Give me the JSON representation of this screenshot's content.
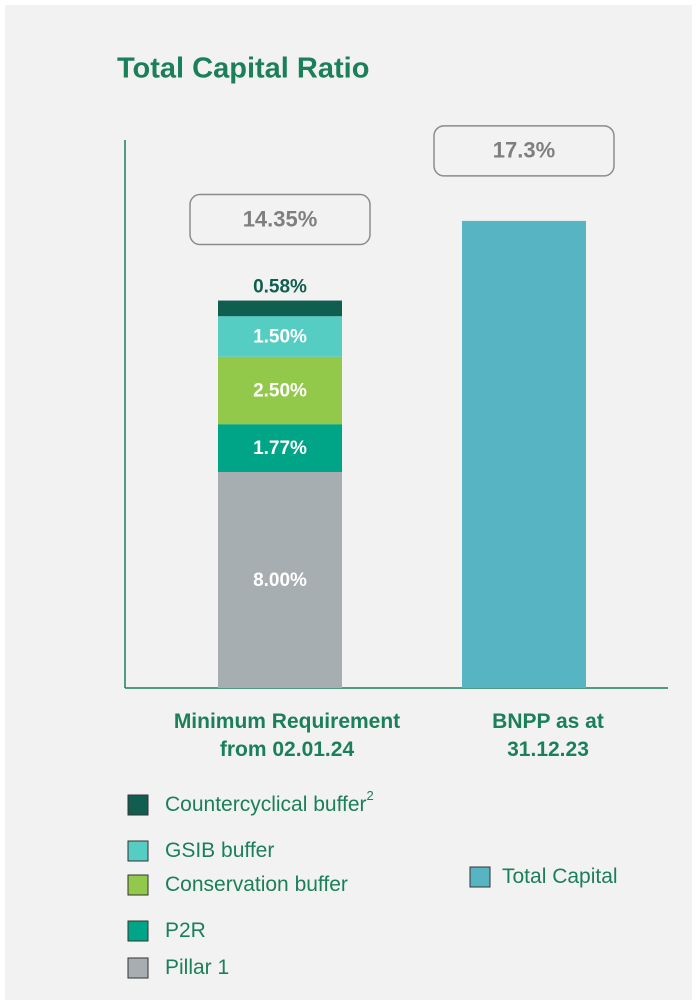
{
  "chart_data": {
    "type": "stacked_bar",
    "title": "Total Capital Ratio",
    "categories": [
      [
        "Minimum Requirement",
        "from 02.01.24"
      ],
      [
        "BNPP as at",
        "31.12.23"
      ]
    ],
    "series": [
      {
        "name": "Pillar 1",
        "color": "#a7aeb1",
        "values": [
          8.0,
          null
        ],
        "value_labels": [
          "8.00%",
          null
        ]
      },
      {
        "name": "P2R",
        "color": "#00a486",
        "values": [
          1.77,
          null
        ],
        "value_labels": [
          "1.77%",
          null
        ]
      },
      {
        "name": "Conservation buffer",
        "color": "#93c94a",
        "values": [
          2.5,
          null
        ],
        "value_labels": [
          "2.50%",
          null
        ]
      },
      {
        "name": "GSIB buffer",
        "color": "#55cdc3",
        "values": [
          1.5,
          null
        ],
        "value_labels": [
          "1.50%",
          null
        ]
      },
      {
        "name": "Countercyclical buffer",
        "superscript": "2",
        "color": "#0f5e4f",
        "values": [
          0.58,
          null
        ],
        "value_labels": [
          "0.58%",
          null
        ]
      },
      {
        "name": "Total Capital",
        "color": "#57b4c3",
        "values": [
          null,
          17.3
        ]
      }
    ],
    "totals": [
      14.35,
      17.3
    ],
    "total_labels": [
      "14.35%",
      "17.3%"
    ]
  }
}
